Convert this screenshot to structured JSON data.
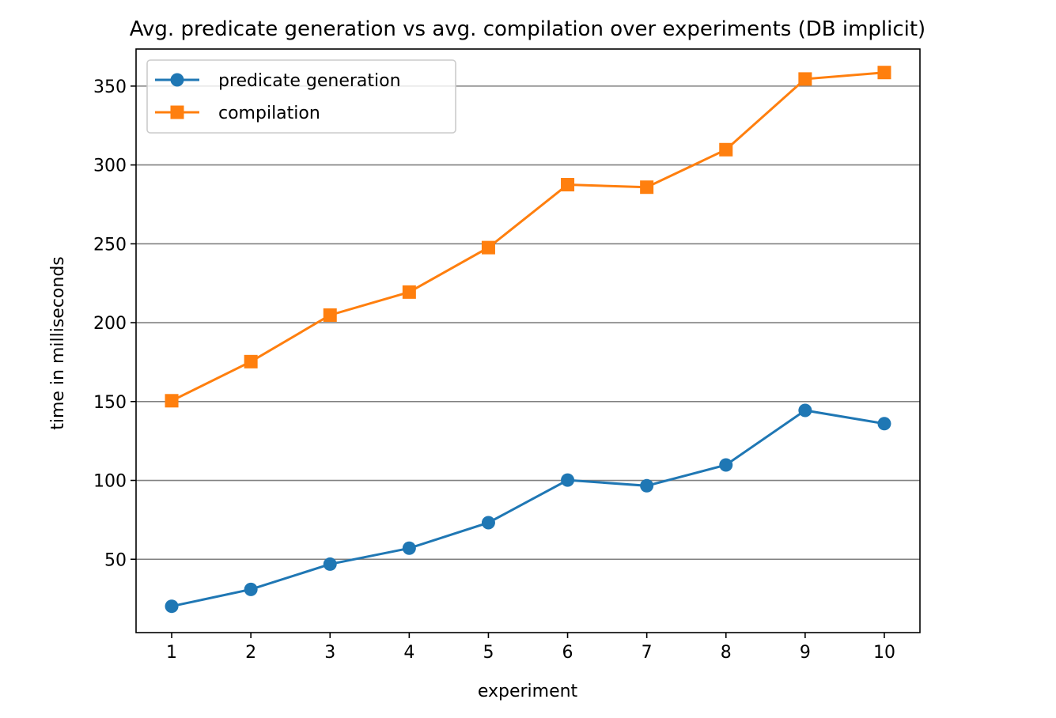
{
  "chart_data": {
    "type": "line",
    "title": "Avg. predicate generation vs avg. compilation over experiments (DB implicit)",
    "xlabel": "experiment",
    "ylabel": "time in milliseconds",
    "x": [
      1,
      2,
      3,
      4,
      5,
      6,
      7,
      8,
      9,
      10
    ],
    "xticks": [
      "1",
      "2",
      "3",
      "4",
      "5",
      "6",
      "7",
      "8",
      "9",
      "10"
    ],
    "yticks": [
      50,
      100,
      150,
      200,
      250,
      300,
      350
    ],
    "xlim": [
      0.55,
      10.45
    ],
    "ylim": [
      3.5,
      373.5
    ],
    "grid": "horizontal",
    "legend_position": "top-left",
    "series": [
      {
        "name": "predicate generation",
        "marker": "circle",
        "color": "#1f77b4",
        "values": [
          20.2,
          30.9,
          46.9,
          57.0,
          73.2,
          100.2,
          96.6,
          109.8,
          144.4,
          136.0
        ]
      },
      {
        "name": "compilation",
        "marker": "square",
        "color": "#ff7f0e",
        "values": [
          150.5,
          175.3,
          204.8,
          219.4,
          247.6,
          287.5,
          285.9,
          309.7,
          354.5,
          358.6
        ]
      }
    ]
  }
}
